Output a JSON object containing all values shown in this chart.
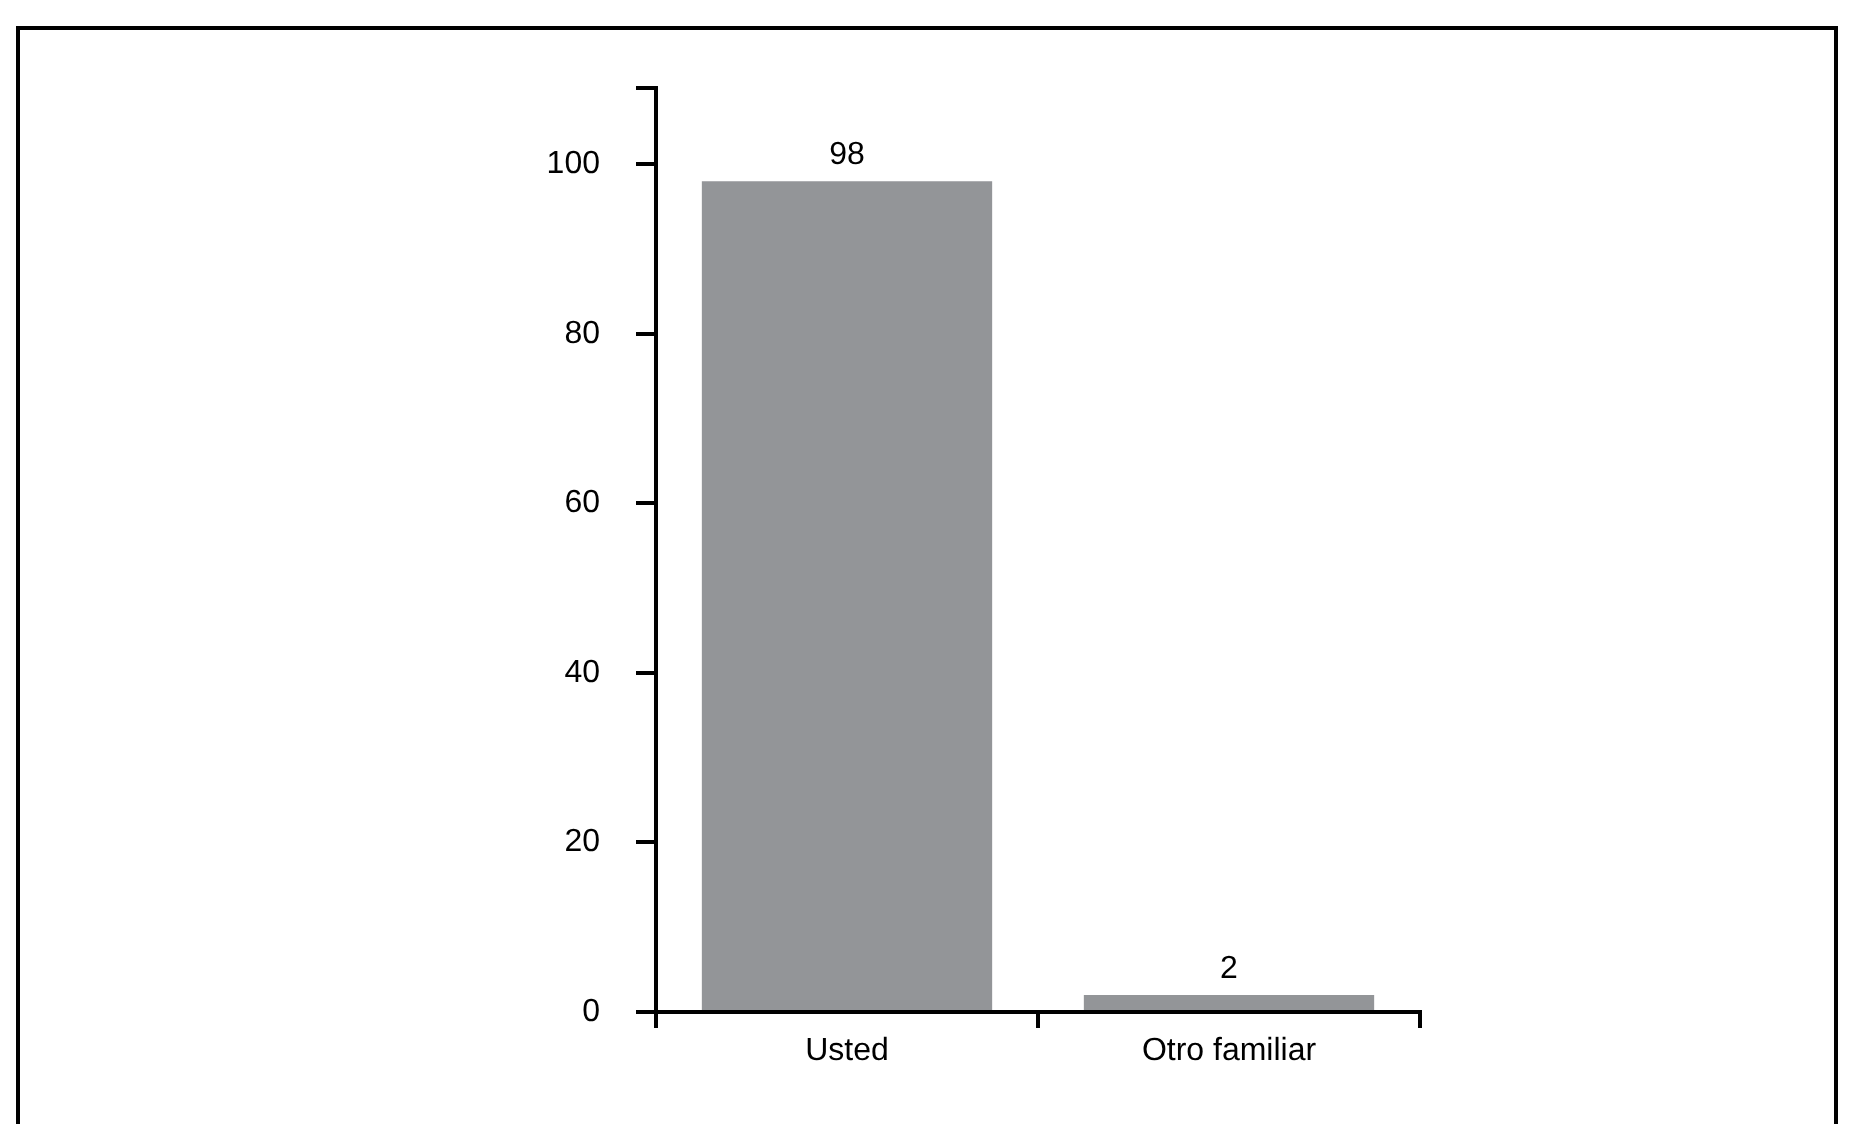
{
  "chart_data": {
    "type": "bar",
    "categories": [
      "Usted",
      "Otro familiar"
    ],
    "values": [
      98,
      2
    ],
    "color": "#939598",
    "ylim": [
      0,
      109
    ],
    "yticks": [
      0,
      20,
      40,
      60,
      80,
      100,
      {
        "value": 109,
        "label": null
      }
    ],
    "grid": false,
    "legend": false,
    "data_labels": true
  }
}
